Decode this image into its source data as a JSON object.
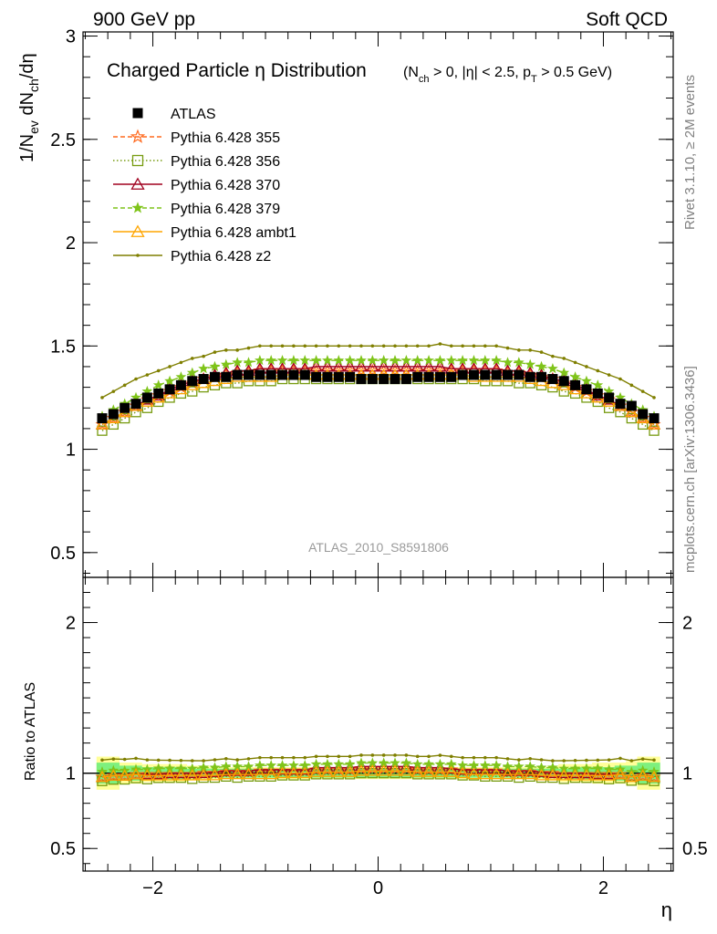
{
  "header": {
    "left": "900 GeV pp",
    "right": "Soft QCD"
  },
  "side_labels": {
    "rivet": "Rivet 3.1.10, ≥ 2M events",
    "mcplots": "mcplots.cern.ch [arXiv:1306.3436]"
  },
  "chart_data": [
    {
      "type": "scatter",
      "title": "Charged Particle η Distribution",
      "title_cuts": "(N_ch > 0, |η| < 2.5, p_T > 0.5 GeV)",
      "ylabel": "1/N_ev dN_ch/dη",
      "xlabel": "η",
      "analysis_label": "ATLAS_2010_S8591806",
      "xlim": [
        -2.62,
        2.62
      ],
      "ylim": [
        0.38,
        3.02
      ],
      "yticks": [
        0.5,
        1,
        1.5,
        2,
        2.5,
        3
      ],
      "ytick_labels": [
        "0.5",
        "1",
        "1.5",
        "2",
        "2.5",
        "3"
      ],
      "x": [
        -2.45,
        -2.35,
        -2.25,
        -2.15,
        -2.05,
        -1.95,
        -1.85,
        -1.75,
        -1.65,
        -1.55,
        -1.45,
        -1.35,
        -1.25,
        -1.15,
        -1.05,
        -0.95,
        -0.85,
        -0.75,
        -0.65,
        -0.55,
        -0.45,
        -0.35,
        -0.25,
        -0.15,
        -0.05,
        0.05,
        0.15,
        0.25,
        0.35,
        0.45,
        0.55,
        0.65,
        0.75,
        0.85,
        0.95,
        1.05,
        1.15,
        1.25,
        1.35,
        1.45,
        1.55,
        1.65,
        1.75,
        1.85,
        1.95,
        2.05,
        2.15,
        2.25,
        2.35,
        2.45
      ],
      "series": [
        {
          "name": "ATLAS",
          "style": "data",
          "marker": "filled-square",
          "color": "#000000",
          "values": [
            1.15,
            1.17,
            1.2,
            1.22,
            1.25,
            1.27,
            1.29,
            1.31,
            1.33,
            1.34,
            1.35,
            1.35,
            1.36,
            1.36,
            1.36,
            1.36,
            1.36,
            1.36,
            1.36,
            1.35,
            1.35,
            1.35,
            1.35,
            1.34,
            1.34,
            1.34,
            1.34,
            1.34,
            1.35,
            1.35,
            1.35,
            1.35,
            1.36,
            1.36,
            1.36,
            1.36,
            1.36,
            1.36,
            1.35,
            1.35,
            1.34,
            1.33,
            1.31,
            1.29,
            1.27,
            1.25,
            1.22,
            1.21,
            1.17,
            1.15
          ]
        },
        {
          "name": "Pythia 6.428 355",
          "style": "dashed",
          "marker": "open-star",
          "color": "#ff6a1f",
          "values": [
            1.12,
            1.15,
            1.18,
            1.21,
            1.24,
            1.26,
            1.28,
            1.3,
            1.32,
            1.34,
            1.35,
            1.36,
            1.37,
            1.37,
            1.38,
            1.38,
            1.38,
            1.38,
            1.38,
            1.38,
            1.38,
            1.38,
            1.38,
            1.38,
            1.38,
            1.38,
            1.38,
            1.38,
            1.38,
            1.38,
            1.38,
            1.38,
            1.38,
            1.38,
            1.38,
            1.38,
            1.37,
            1.37,
            1.36,
            1.35,
            1.34,
            1.32,
            1.3,
            1.28,
            1.26,
            1.24,
            1.21,
            1.18,
            1.15,
            1.12
          ]
        },
        {
          "name": "Pythia 6.428 356",
          "style": "dotted",
          "marker": "open-square",
          "color": "#779b10",
          "values": [
            1.09,
            1.12,
            1.15,
            1.18,
            1.2,
            1.23,
            1.25,
            1.27,
            1.28,
            1.3,
            1.31,
            1.32,
            1.32,
            1.33,
            1.33,
            1.33,
            1.34,
            1.34,
            1.34,
            1.34,
            1.34,
            1.34,
            1.34,
            1.34,
            1.34,
            1.34,
            1.34,
            1.34,
            1.34,
            1.34,
            1.34,
            1.34,
            1.34,
            1.34,
            1.33,
            1.33,
            1.33,
            1.32,
            1.32,
            1.31,
            1.3,
            1.28,
            1.27,
            1.25,
            1.23,
            1.2,
            1.18,
            1.15,
            1.12,
            1.09
          ]
        },
        {
          "name": "Pythia 6.428 370",
          "style": "solid",
          "marker": "open-triangle",
          "color": "#a0001f",
          "values": [
            1.12,
            1.15,
            1.18,
            1.21,
            1.24,
            1.26,
            1.29,
            1.31,
            1.33,
            1.34,
            1.36,
            1.37,
            1.38,
            1.38,
            1.39,
            1.39,
            1.39,
            1.39,
            1.39,
            1.4,
            1.4,
            1.4,
            1.4,
            1.4,
            1.4,
            1.4,
            1.4,
            1.4,
            1.4,
            1.4,
            1.4,
            1.39,
            1.39,
            1.39,
            1.39,
            1.39,
            1.38,
            1.38,
            1.37,
            1.36,
            1.34,
            1.33,
            1.31,
            1.29,
            1.26,
            1.24,
            1.21,
            1.18,
            1.15,
            1.12
          ]
        },
        {
          "name": "Pythia 6.428 379",
          "style": "dashed",
          "marker": "filled-star",
          "color": "#7fc41a",
          "values": [
            1.16,
            1.19,
            1.22,
            1.25,
            1.28,
            1.31,
            1.33,
            1.35,
            1.37,
            1.39,
            1.4,
            1.41,
            1.42,
            1.42,
            1.43,
            1.43,
            1.43,
            1.43,
            1.43,
            1.43,
            1.43,
            1.43,
            1.43,
            1.43,
            1.43,
            1.43,
            1.43,
            1.43,
            1.43,
            1.43,
            1.43,
            1.43,
            1.43,
            1.43,
            1.43,
            1.43,
            1.42,
            1.42,
            1.41,
            1.4,
            1.39,
            1.37,
            1.35,
            1.33,
            1.31,
            1.28,
            1.25,
            1.22,
            1.19,
            1.16
          ]
        },
        {
          "name": "Pythia 6.428 ambt1",
          "style": "solid",
          "marker": "open-triangle",
          "color": "#ffa500",
          "values": [
            1.12,
            1.15,
            1.18,
            1.21,
            1.23,
            1.25,
            1.27,
            1.29,
            1.31,
            1.32,
            1.33,
            1.34,
            1.35,
            1.35,
            1.35,
            1.35,
            1.36,
            1.36,
            1.36,
            1.36,
            1.36,
            1.36,
            1.36,
            1.36,
            1.36,
            1.36,
            1.36,
            1.36,
            1.36,
            1.36,
            1.36,
            1.36,
            1.36,
            1.35,
            1.35,
            1.35,
            1.35,
            1.35,
            1.34,
            1.33,
            1.32,
            1.31,
            1.29,
            1.27,
            1.25,
            1.23,
            1.21,
            1.18,
            1.15,
            1.12
          ]
        },
        {
          "name": "Pythia 6.428 z2",
          "style": "solid",
          "marker": "dot",
          "color": "#7f7f00",
          "values": [
            1.25,
            1.28,
            1.31,
            1.34,
            1.36,
            1.38,
            1.4,
            1.42,
            1.44,
            1.45,
            1.47,
            1.48,
            1.48,
            1.49,
            1.5,
            1.5,
            1.5,
            1.5,
            1.5,
            1.5,
            1.5,
            1.5,
            1.5,
            1.5,
            1.5,
            1.5,
            1.5,
            1.5,
            1.5,
            1.5,
            1.51,
            1.5,
            1.5,
            1.5,
            1.5,
            1.5,
            1.49,
            1.48,
            1.48,
            1.47,
            1.45,
            1.44,
            1.42,
            1.4,
            1.38,
            1.36,
            1.34,
            1.31,
            1.28,
            1.25
          ]
        }
      ]
    },
    {
      "type": "scatter",
      "ylabel": "Ratio to ATLAS",
      "xlabel": "η",
      "xlim": [
        -2.62,
        2.62
      ],
      "ylim": [
        0.35,
        2.3
      ],
      "xticks": [
        -2,
        0,
        2
      ],
      "xtick_labels": [
        "−2",
        "0",
        "2"
      ],
      "yticks": [
        0.5,
        1,
        2
      ],
      "ytick_labels": [
        "0.5",
        "1",
        "2"
      ],
      "reference_line": 1,
      "band_inner": [
        0.07,
        0.07,
        0.05,
        0.05,
        0.04,
        0.04,
        0.04,
        0.04,
        0.03,
        0.03,
        0.03,
        0.03,
        0.03,
        0.03,
        0.03,
        0.03,
        0.03,
        0.03,
        0.03,
        0.03,
        0.03,
        0.03,
        0.03,
        0.03,
        0.03,
        0.03,
        0.03,
        0.03,
        0.03,
        0.03,
        0.03,
        0.03,
        0.03,
        0.03,
        0.03,
        0.03,
        0.03,
        0.03,
        0.03,
        0.03,
        0.03,
        0.03,
        0.04,
        0.04,
        0.04,
        0.04,
        0.05,
        0.05,
        0.07,
        0.07
      ],
      "band_outer": [
        0.11,
        0.11,
        0.07,
        0.07,
        0.06,
        0.06,
        0.06,
        0.06,
        0.05,
        0.05,
        0.04,
        0.04,
        0.04,
        0.04,
        0.04,
        0.04,
        0.04,
        0.04,
        0.04,
        0.04,
        0.04,
        0.04,
        0.04,
        0.04,
        0.04,
        0.04,
        0.04,
        0.04,
        0.04,
        0.04,
        0.04,
        0.04,
        0.04,
        0.04,
        0.04,
        0.04,
        0.04,
        0.04,
        0.04,
        0.04,
        0.05,
        0.06,
        0.06,
        0.06,
        0.07,
        0.07,
        0.07,
        0.08,
        0.11,
        0.11
      ]
    }
  ],
  "colors": {
    "band_inner": "#7ef07e",
    "band_outer": "#ffff99"
  }
}
